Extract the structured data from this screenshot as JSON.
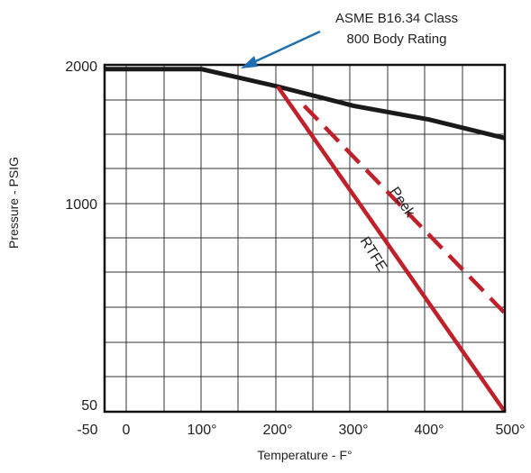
{
  "chart_data": {
    "type": "line",
    "xlabel": "Temperature - F°",
    "ylabel": "Pressure - PSIG",
    "xlim": [
      -50,
      500
    ],
    "x_tick_labels": [
      "-50",
      "0",
      "100°",
      "200°",
      "300°",
      "400°",
      "500°"
    ],
    "y_tick_labels": [
      "50",
      "1000",
      "2000"
    ],
    "grid": true,
    "annotation": {
      "lines": [
        "ASME B16.34 Class",
        "800 Body Rating"
      ],
      "points_to_x": 150
    },
    "series": [
      {
        "name": "ASME B16.34 Class 800 Body Rating",
        "color": "#1a1a1a",
        "style": "solid",
        "points": [
          [
            -50,
            1975
          ],
          [
            100,
            1975
          ],
          [
            200,
            1850
          ],
          [
            300,
            1710
          ],
          [
            400,
            1610
          ],
          [
            500,
            1475
          ]
        ]
      },
      {
        "name": "RTFE",
        "color": "#c0202a",
        "style": "solid",
        "points": [
          [
            200,
            1850
          ],
          [
            500,
            50
          ]
        ]
      },
      {
        "name": "Peek",
        "color": "#c0202a",
        "style": "dashed",
        "points": [
          [
            235,
            1710
          ],
          [
            500,
            500
          ]
        ]
      }
    ]
  }
}
